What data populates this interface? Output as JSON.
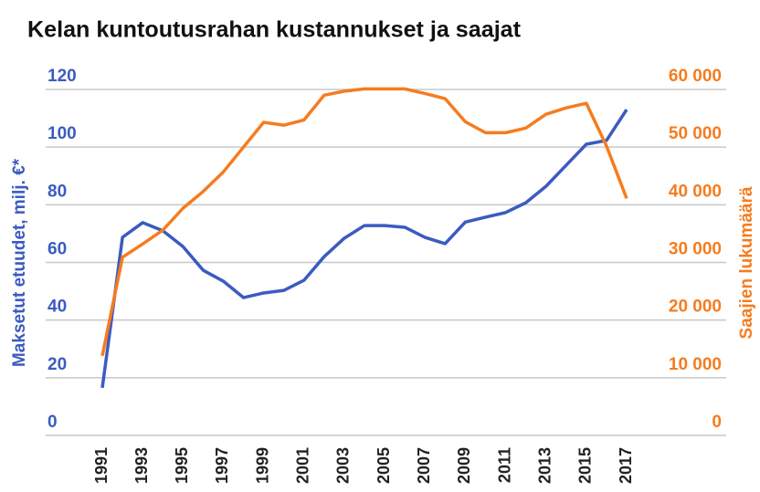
{
  "chart_data": {
    "type": "line",
    "title": "Kelan kuntoutusrahan kustannukset ja saajat",
    "y_label": "Maksetut etuudet, milj. €*",
    "y2_label": "Saajien lukumäärä",
    "x": [
      1991,
      1992,
      1993,
      1994,
      1995,
      1996,
      1997,
      1998,
      1999,
      2000,
      2001,
      2002,
      2003,
      2004,
      2005,
      2006,
      2007,
      2008,
      2009,
      2010,
      2011,
      2012,
      2013,
      2014,
      2015,
      2016,
      2017
    ],
    "xlim": [
      1991,
      2017
    ],
    "xticks": [
      1991,
      1993,
      1995,
      1997,
      1999,
      2001,
      2003,
      2005,
      2007,
      2009,
      2011,
      2013,
      2015,
      2017
    ],
    "ylim": [
      0,
      120
    ],
    "yticks": [
      0,
      20,
      40,
      60,
      80,
      100,
      120
    ],
    "y2lim": [
      0,
      60000
    ],
    "y2ticks": [
      0,
      {
        "value": 10000,
        "label": "10 000"
      },
      {
        "value": 20000,
        "label": "20 000"
      },
      {
        "value": 30000,
        "label": "30 000"
      },
      {
        "value": 40000,
        "label": "40 000"
      },
      {
        "value": 50000,
        "label": "50 000"
      },
      {
        "value": 60000,
        "label": "60 000"
      }
    ],
    "grid": true,
    "series": [
      {
        "color": "#3b5bc0",
        "axis": "y",
        "values": [
          16.5,
          68.7,
          73.8,
          71,
          65.5,
          57.3,
          53.5,
          47.8,
          49.4,
          50.3,
          53.8,
          62,
          68.4,
          72.8,
          72.8,
          72.2,
          68.7,
          66.5,
          74,
          75.7,
          77.3,
          80.7,
          86.4,
          93.7,
          101,
          102.3,
          113
        ]
      },
      {
        "color": "#f57c1f",
        "axis": "y2",
        "values": [
          13800,
          30900,
          33200,
          35600,
          39400,
          42300,
          45700,
          50000,
          54300,
          53800,
          54700,
          59000,
          59700,
          60100,
          60100,
          60100,
          59300,
          58400,
          54400,
          52500,
          52500,
          53300,
          55700,
          56800,
          57600,
          50200,
          41100
        ]
      }
    ]
  }
}
